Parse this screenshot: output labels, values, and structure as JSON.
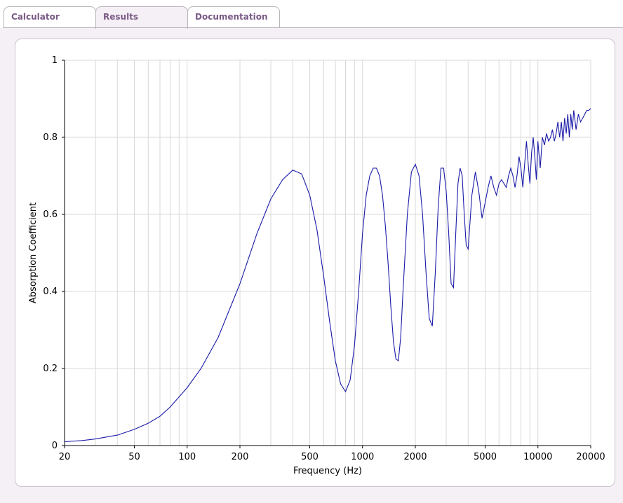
{
  "tabs": [
    {
      "label": "Calculator",
      "active": false
    },
    {
      "label": "Results",
      "active": true
    },
    {
      "label": "Documentation",
      "active": false
    }
  ],
  "colors": {
    "tab_text": "#7a5a86",
    "line": "#1a1aa8",
    "grid": "#d8d8d8",
    "axis": "#000000"
  },
  "chart_data": {
    "type": "line",
    "xlabel": "Frequency (Hz)",
    "ylabel": "Absorption Coefficient",
    "x_scale": "log",
    "xlim": [
      20,
      20000
    ],
    "ylim": [
      0,
      1
    ],
    "grid": true,
    "x_tick_labels": [
      "20",
      "50",
      "100",
      "200",
      "500",
      "1000",
      "2000",
      "5000",
      "10000",
      "20000"
    ],
    "y_tick_labels": [
      "0",
      "0.2",
      "0.4",
      "0.6",
      "0.8",
      "1"
    ],
    "series": [
      {
        "x": [
          20,
          25,
          30,
          40,
          50,
          60,
          70,
          80,
          100,
          120,
          150,
          200,
          250,
          300,
          350,
          400,
          450,
          500,
          550,
          600,
          650,
          700,
          750,
          800,
          850,
          900,
          950,
          1000,
          1050,
          1100,
          1150,
          1200,
          1250,
          1300,
          1350,
          1400,
          1450,
          1500,
          1550,
          1600,
          1650,
          1700,
          1800,
          1900,
          2000,
          2100,
          2200,
          2300,
          2400,
          2500,
          2600,
          2700,
          2800,
          2900,
          3000,
          3100,
          3200,
          3300,
          3400,
          3500,
          3600,
          3700,
          3800,
          3900,
          4000,
          4200,
          4400,
          4600,
          4800,
          5000,
          5200,
          5400,
          5600,
          5800,
          6000,
          6200,
          6400,
          6600,
          6800,
          7000,
          7200,
          7400,
          7600,
          7800,
          8000,
          8200,
          8400,
          8600,
          8800,
          9000,
          9200,
          9400,
          9600,
          9800,
          10000,
          10300,
          10600,
          10900,
          11200,
          11500,
          11800,
          12100,
          12400,
          12700,
          13000,
          13300,
          13600,
          13900,
          14200,
          14500,
          14800,
          15100,
          15400,
          15700,
          16000,
          16500,
          17000,
          17500,
          18000,
          18500,
          19000,
          19500,
          20000
        ],
        "y": [
          0.01,
          0.013,
          0.017,
          0.027,
          0.042,
          0.058,
          0.076,
          0.1,
          0.15,
          0.2,
          0.28,
          0.42,
          0.55,
          0.64,
          0.69,
          0.715,
          0.705,
          0.65,
          0.56,
          0.44,
          0.32,
          0.22,
          0.16,
          0.14,
          0.17,
          0.26,
          0.4,
          0.55,
          0.65,
          0.7,
          0.72,
          0.72,
          0.7,
          0.65,
          0.57,
          0.47,
          0.36,
          0.27,
          0.225,
          0.22,
          0.28,
          0.4,
          0.6,
          0.71,
          0.73,
          0.7,
          0.6,
          0.45,
          0.33,
          0.31,
          0.45,
          0.62,
          0.72,
          0.72,
          0.66,
          0.55,
          0.42,
          0.41,
          0.55,
          0.68,
          0.72,
          0.7,
          0.6,
          0.52,
          0.51,
          0.65,
          0.71,
          0.66,
          0.59,
          0.63,
          0.67,
          0.7,
          0.67,
          0.65,
          0.68,
          0.69,
          0.68,
          0.67,
          0.7,
          0.72,
          0.7,
          0.67,
          0.7,
          0.75,
          0.72,
          0.67,
          0.73,
          0.79,
          0.73,
          0.68,
          0.76,
          0.8,
          0.75,
          0.69,
          0.79,
          0.72,
          0.8,
          0.78,
          0.81,
          0.79,
          0.8,
          0.82,
          0.79,
          0.81,
          0.84,
          0.8,
          0.84,
          0.79,
          0.85,
          0.81,
          0.86,
          0.8,
          0.86,
          0.82,
          0.87,
          0.82,
          0.86,
          0.84,
          0.85,
          0.86,
          0.87,
          0.87,
          0.875
        ]
      }
    ]
  }
}
